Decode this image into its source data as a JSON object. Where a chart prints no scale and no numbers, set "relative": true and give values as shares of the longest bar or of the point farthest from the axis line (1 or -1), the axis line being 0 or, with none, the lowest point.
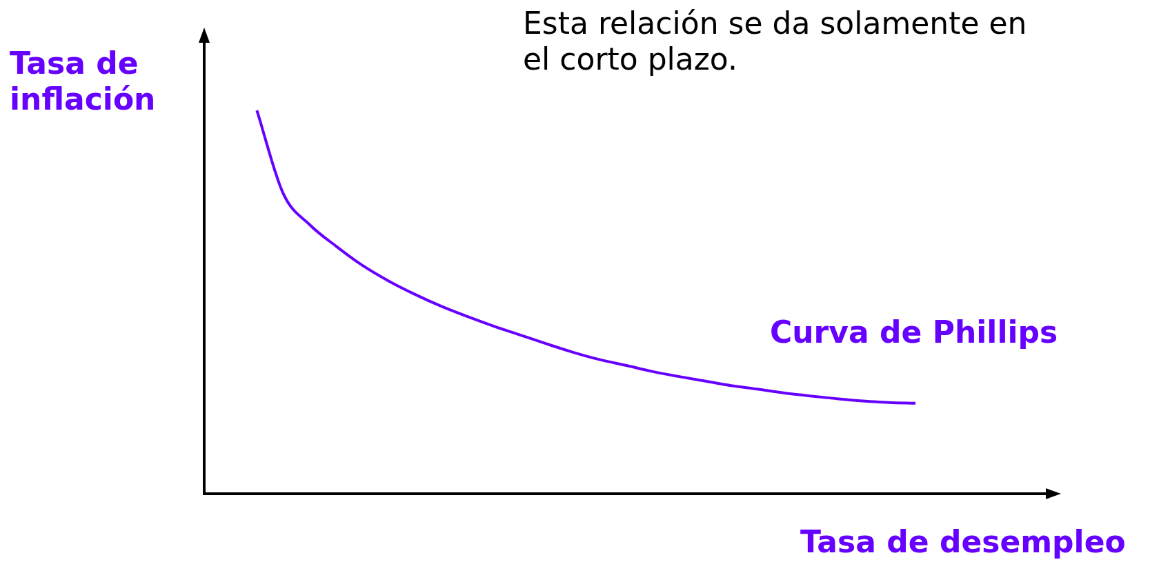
{
  "chart_data": {
    "type": "line",
    "relative": true,
    "xlabel": "Tasa de desempleo",
    "ylabel": "Tasa de inflación",
    "annotations": [
      "Esta relación se da solamente en el corto plazo."
    ],
    "categories": [
      null,
      null,
      null,
      null,
      null,
      null,
      null,
      null,
      null,
      null,
      null,
      null,
      null,
      null,
      null,
      null,
      null,
      null,
      null,
      null,
      null,
      null,
      null,
      null,
      null,
      null,
      null,
      null,
      null,
      null,
      null,
      null,
      null
    ],
    "series": [
      {
        "name": "Curva de Phillips",
        "color": "#6600ff",
        "values": [
          null,
          null,
          1,
          0.783,
          0.702,
          0.646,
          0.596,
          0.555,
          0.52,
          0.489,
          0.462,
          0.437,
          0.414,
          0.391,
          0.369,
          0.35,
          0.335,
          0.319,
          0.306,
          0.294,
          0.282,
          0.273,
          0.263,
          0.255,
          0.248,
          0.242,
          0.238,
          0.236,
          null,
          null,
          null,
          null,
          null
        ]
      }
    ],
    "grid": false,
    "legend": false,
    "marker": "none",
    "line_style": "solid"
  }
}
